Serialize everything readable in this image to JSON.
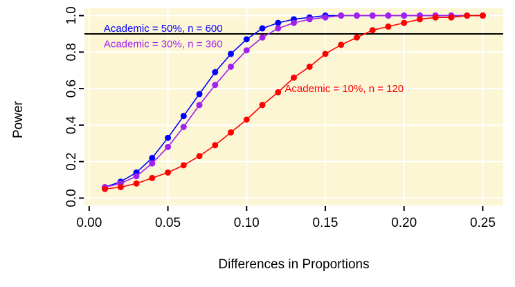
{
  "figure": {
    "xlabel": "Differences in Proportions",
    "ylabel": "Power"
  },
  "chart_data": {
    "type": "line",
    "title": "",
    "xlabel": "Differences in Proportions",
    "ylabel": "Power",
    "plot_bg": "#FCF6D4",
    "grid_color": "#FFFFFF",
    "grid": "on",
    "legend_position": "annotations-inside-plot",
    "xlim": [
      -0.003,
      0.263
    ],
    "ylim": [
      -0.04,
      1.04
    ],
    "x_ticks": {
      "values": [
        0,
        0.05,
        0.1,
        0.15,
        0.2,
        0.25
      ],
      "labels": [
        "0.00",
        "0.05",
        "0.10",
        "0.15",
        "0.20",
        "0.25"
      ]
    },
    "y_ticks": {
      "values": [
        0,
        0.2,
        0.4,
        0.6,
        0.8,
        1.0
      ],
      "labels": [
        "0.0",
        "0.2",
        "0.4",
        "0.6",
        "0.8",
        "1.0"
      ]
    },
    "x": [
      0.01,
      0.02,
      0.03,
      0.04,
      0.05,
      0.06,
      0.07,
      0.08,
      0.09,
      0.1,
      0.11,
      0.12,
      0.13,
      0.14,
      0.15,
      0.16,
      0.17,
      0.18,
      0.19,
      0.2,
      0.21,
      0.22,
      0.23,
      0.24,
      0.25
    ],
    "series": [
      {
        "name": "Academic = 50%, n = 600",
        "color": "#0000FF",
        "values": [
          0.06,
          0.09,
          0.14,
          0.22,
          0.33,
          0.45,
          0.57,
          0.69,
          0.79,
          0.87,
          0.93,
          0.96,
          0.98,
          0.99,
          1.0,
          1.0,
          1.0,
          1.0,
          1.0,
          1.0,
          1.0,
          1.0,
          1.0,
          1.0,
          1.0
        ]
      },
      {
        "name": "Academic = 30%, n = 360",
        "color": "#A020F0",
        "values": [
          0.06,
          0.08,
          0.12,
          0.19,
          0.28,
          0.39,
          0.51,
          0.62,
          0.72,
          0.81,
          0.88,
          0.93,
          0.96,
          0.98,
          0.99,
          1.0,
          1.0,
          1.0,
          1.0,
          1.0,
          1.0,
          1.0,
          1.0,
          1.0,
          1.0
        ]
      },
      {
        "name": "Academic = 10%, n = 120",
        "color": "#FF0000",
        "values": [
          0.05,
          0.06,
          0.08,
          0.11,
          0.14,
          0.18,
          0.23,
          0.29,
          0.36,
          0.43,
          0.51,
          0.58,
          0.66,
          0.72,
          0.79,
          0.84,
          0.88,
          0.92,
          0.94,
          0.96,
          0.98,
          0.99,
          0.99,
          1.0,
          1.0
        ]
      }
    ],
    "reference_line": {
      "y": 0.9,
      "color": "#000000"
    },
    "annotations": [
      {
        "text": "Academic = 50%, n = 600",
        "x": 0.047,
        "y": 0.93,
        "color": "#0000FF"
      },
      {
        "text": "Academic = 30%, n = 360",
        "x": 0.047,
        "y": 0.845,
        "color": "#A020F0"
      },
      {
        "text": "Academic = 10%, n = 120",
        "x": 0.162,
        "y": 0.6,
        "color": "#FF0000"
      }
    ]
  }
}
